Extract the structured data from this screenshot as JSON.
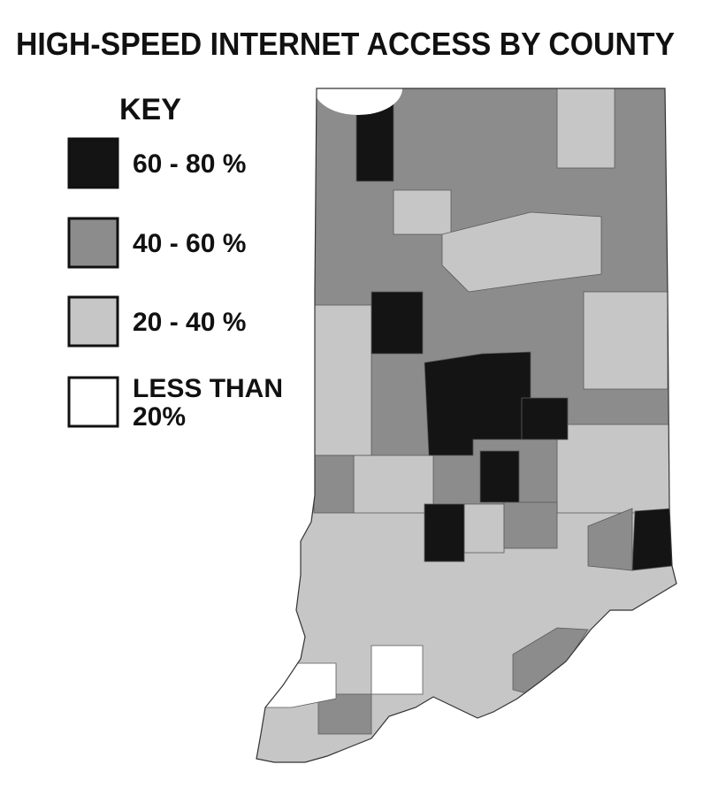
{
  "title": "HIGH-SPEED INTERNET ACCESS BY COUNTY",
  "key": {
    "title": "KEY",
    "items": [
      {
        "lines": [
          "60 - 80 %"
        ],
        "color": "#141414"
      },
      {
        "lines": [
          "40 - 60 %"
        ],
        "color": "#8c8c8c"
      },
      {
        "lines": [
          "20 - 40 %"
        ],
        "color": "#c6c6c6"
      },
      {
        "lines": [
          "LESS THAN",
          "20%"
        ],
        "color": "#ffffff"
      }
    ]
  }
}
